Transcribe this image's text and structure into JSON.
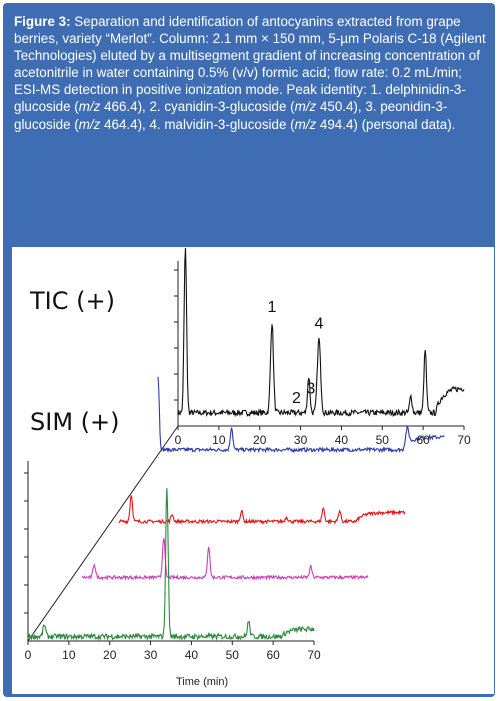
{
  "caption": {
    "label": "Figure 3:",
    "parts": [
      " Separation and identification of antocyanins extracted from grape berries, variety “Merlot”. Column: 2.1 mm × 150 mm, 5-µm Polaris C-18 (Agilent Technologies) eluted by a multisegment gradient of increasing concentration of acetonitrile in water containing 0.5% (v/v) formic acid; flow rate: 0.2 mL/min; ESI-MS detection in positive ionization mode. Peak identity: 1. delphinidin-3-glucoside (",
      "m/z",
      " 466.4), 2. cyanidin-3-glucoside (",
      "m/z",
      " 450.4), 3. peonidin-3-glucoside (",
      "m/z",
      " 464.4), 4. malvidin-3-glucoside (",
      "m/z",
      " 494.4) (personal data)."
    ]
  },
  "colors": {
    "panel": "#3f6db3",
    "tic": "#111111",
    "sim1": "#2b3aa6",
    "sim2": "#e0161b",
    "sim3": "#c93fb2",
    "sim4": "#2b8a3a"
  },
  "chart_data": {
    "type": "line",
    "title": "",
    "labels": {
      "tic": "TIC (+)",
      "sim": "SIM (+)"
    },
    "xlabel": "Time (min)",
    "xlim": [
      0,
      70
    ],
    "xticks": [
      "0",
      "10",
      "20",
      "30",
      "40",
      "50",
      "60",
      "70"
    ],
    "peak_labels": [
      {
        "text": "1",
        "x": 23
      },
      {
        "text": "2",
        "x": 29
      },
      {
        "text": "3",
        "x": 32.5
      },
      {
        "text": "4",
        "x": 34.5
      }
    ],
    "series": [
      {
        "key": "tic",
        "baseline": 0.08,
        "peaks": [
          [
            1.8,
            1.0,
            0.3
          ],
          [
            23,
            0.55,
            0.35
          ],
          [
            32,
            0.22,
            0.3
          ],
          [
            34.5,
            0.45,
            0.4
          ],
          [
            57,
            0.1,
            0.3
          ],
          [
            60.5,
            0.38,
            0.3
          ]
        ],
        "tail": [
          [
            63,
            0.15
          ]
        ]
      },
      {
        "key": "sim1",
        "baseline": 0.05,
        "peaks": [
          [
            0,
            0.7,
            0.3
          ],
          [
            18,
            0.22,
            0.3
          ],
          [
            61,
            0.15,
            0.4
          ]
        ],
        "tail": [
          [
            60,
            0.12
          ]
        ]
      },
      {
        "key": "sim2",
        "baseline": 0.05,
        "peaks": [
          [
            3,
            0.3,
            0.3
          ],
          [
            13,
            0.08,
            0.3
          ],
          [
            30,
            0.12,
            0.3
          ],
          [
            41,
            0.05,
            0.3
          ],
          [
            50,
            0.15,
            0.3
          ],
          [
            54,
            0.12,
            0.3
          ]
        ],
        "tail": [
          [
            58,
            0.1
          ]
        ]
      },
      {
        "key": "sim3",
        "baseline": 0.04,
        "peaks": [
          [
            3,
            0.15,
            0.3
          ],
          [
            20,
            0.45,
            0.3
          ],
          [
            31,
            0.35,
            0.3
          ],
          [
            56,
            0.12,
            0.3
          ]
        ],
        "tail": []
      },
      {
        "key": "sim4",
        "baseline": 0.03,
        "peaks": [
          [
            4,
            0.08,
            0.3
          ],
          [
            34,
            1.0,
            0.3
          ],
          [
            54,
            0.1,
            0.3
          ]
        ],
        "tail": [
          [
            62,
            0.05
          ]
        ]
      }
    ]
  }
}
